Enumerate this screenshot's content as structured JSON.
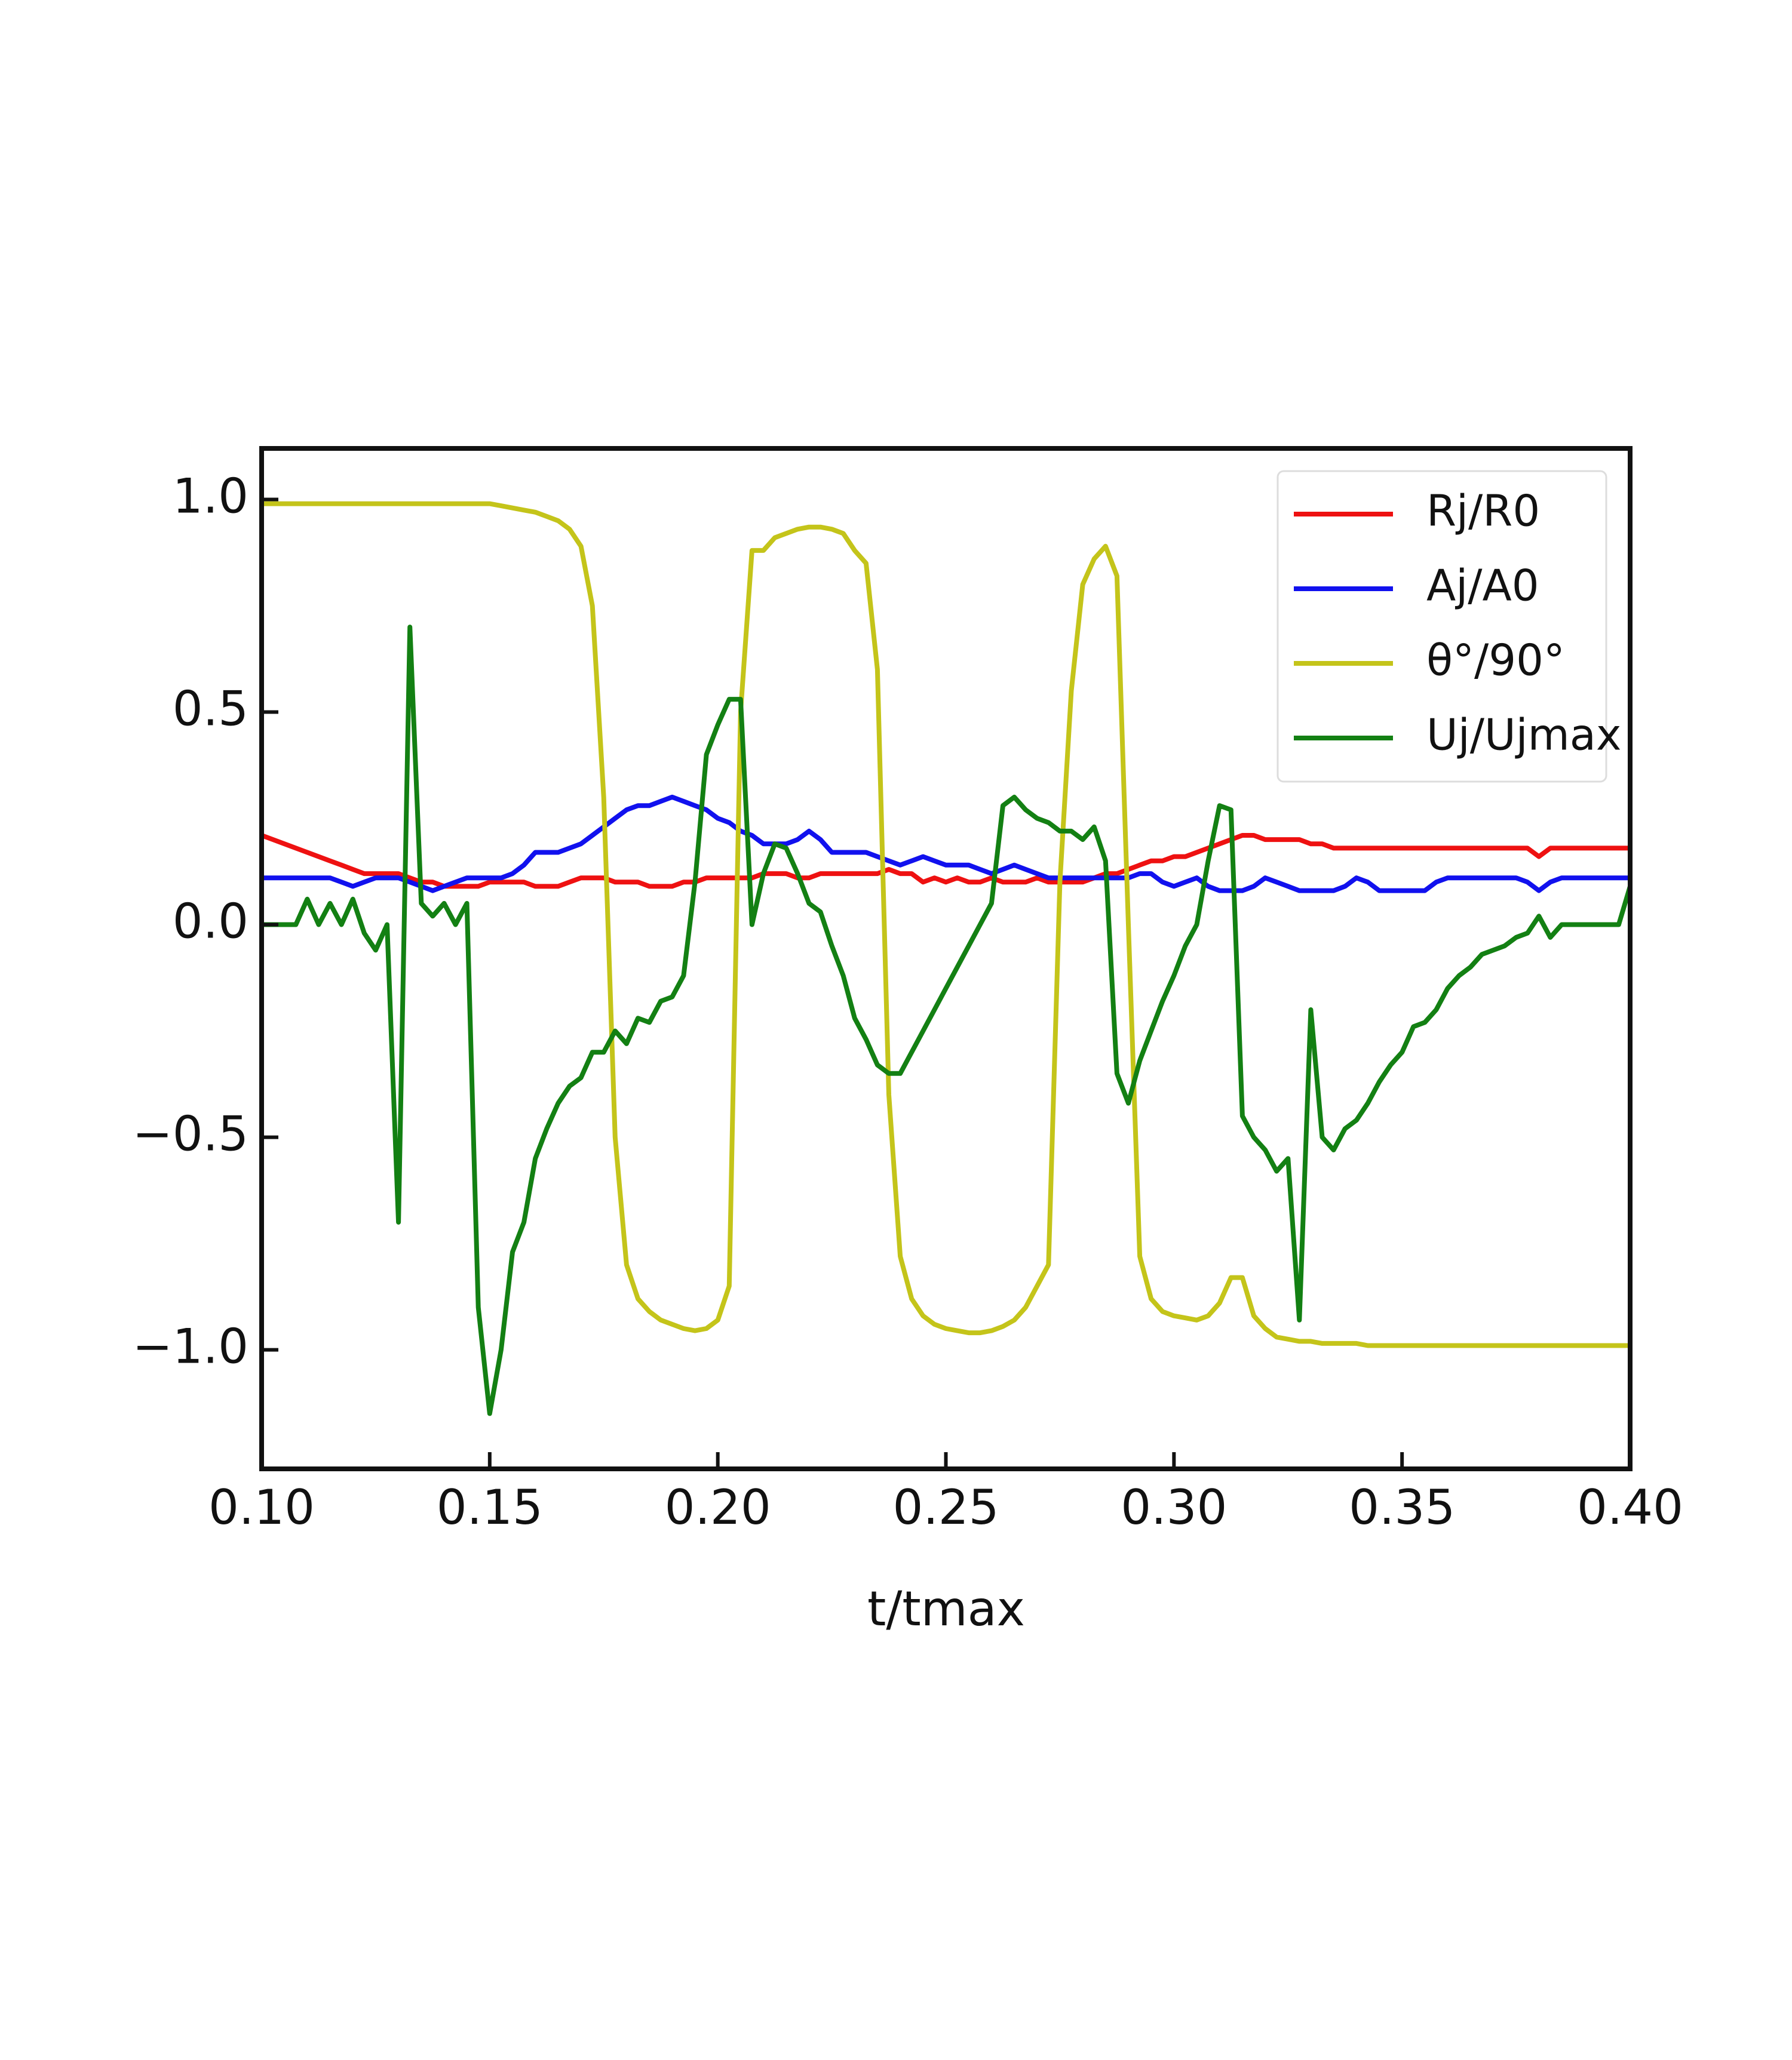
{
  "chart_data": {
    "type": "line",
    "xlabel": "t/tmax",
    "x": [
      0.1,
      0.1025,
      0.105,
      0.1075,
      0.11,
      0.1125,
      0.115,
      0.1175,
      0.12,
      0.1225,
      0.125,
      0.1275,
      0.13,
      0.1325,
      0.135,
      0.1375,
      0.14,
      0.1425,
      0.145,
      0.1475,
      0.15,
      0.1525,
      0.155,
      0.1575,
      0.16,
      0.1625,
      0.165,
      0.1675,
      0.17,
      0.1725,
      0.175,
      0.1775,
      0.18,
      0.1825,
      0.185,
      0.1875,
      0.19,
      0.1925,
      0.195,
      0.1975,
      0.2,
      0.2025,
      0.205,
      0.2075,
      0.21,
      0.2125,
      0.215,
      0.2175,
      0.22,
      0.2225,
      0.225,
      0.2275,
      0.23,
      0.2325,
      0.235,
      0.2375,
      0.24,
      0.2425,
      0.245,
      0.2475,
      0.25,
      0.2525,
      0.255,
      0.2575,
      0.26,
      0.2625,
      0.265,
      0.2675,
      0.27,
      0.2725,
      0.275,
      0.2775,
      0.28,
      0.2825,
      0.285,
      0.2875,
      0.29,
      0.2925,
      0.295,
      0.2975,
      0.3,
      0.3025,
      0.305,
      0.3075,
      0.31,
      0.3125,
      0.315,
      0.3175,
      0.32,
      0.3225,
      0.325,
      0.3275,
      0.33,
      0.3325,
      0.335,
      0.3375,
      0.34,
      0.3425,
      0.345,
      0.3475,
      0.35,
      0.3525,
      0.355,
      0.3575,
      0.36,
      0.3625,
      0.365,
      0.3675,
      0.37,
      0.3725,
      0.375,
      0.3775,
      0.38,
      0.3825,
      0.385,
      0.3875,
      0.39,
      0.3925,
      0.395,
      0.3975,
      0.4
    ],
    "series": [
      {
        "name": "Rj/R0",
        "color": "#ee1111",
        "values": [
          0.21,
          0.2,
          0.19,
          0.18,
          0.17,
          0.16,
          0.15,
          0.14,
          0.13,
          0.12,
          0.12,
          0.12,
          0.12,
          0.11,
          0.1,
          0.1,
          0.09,
          0.09,
          0.09,
          0.09,
          0.1,
          0.1,
          0.1,
          0.1,
          0.09,
          0.09,
          0.09,
          0.1,
          0.11,
          0.11,
          0.11,
          0.1,
          0.1,
          0.1,
          0.09,
          0.09,
          0.09,
          0.1,
          0.1,
          0.11,
          0.11,
          0.11,
          0.11,
          0.11,
          0.12,
          0.12,
          0.12,
          0.11,
          0.11,
          0.12,
          0.12,
          0.12,
          0.12,
          0.12,
          0.12,
          0.13,
          0.12,
          0.12,
          0.1,
          0.11,
          0.1,
          0.11,
          0.1,
          0.1,
          0.11,
          0.1,
          0.1,
          0.1,
          0.11,
          0.1,
          0.1,
          0.1,
          0.1,
          0.11,
          0.12,
          0.12,
          0.13,
          0.14,
          0.15,
          0.15,
          0.16,
          0.16,
          0.17,
          0.18,
          0.19,
          0.2,
          0.21,
          0.21,
          0.2,
          0.2,
          0.2,
          0.2,
          0.19,
          0.19,
          0.18,
          0.18,
          0.18,
          0.18,
          0.18,
          0.18,
          0.18,
          0.18,
          0.18,
          0.18,
          0.18,
          0.18,
          0.18,
          0.18,
          0.18,
          0.18,
          0.18,
          0.18,
          0.16,
          0.18,
          0.18,
          0.18,
          0.18,
          0.18,
          0.18,
          0.18,
          0.18
        ]
      },
      {
        "name": "Aj/A0",
        "color": "#1111ee",
        "values": [
          0.11,
          0.11,
          0.11,
          0.11,
          0.11,
          0.11,
          0.11,
          0.1,
          0.09,
          0.1,
          0.11,
          0.11,
          0.11,
          0.1,
          0.09,
          0.08,
          0.09,
          0.1,
          0.11,
          0.11,
          0.11,
          0.11,
          0.12,
          0.14,
          0.17,
          0.17,
          0.17,
          0.18,
          0.19,
          0.21,
          0.23,
          0.25,
          0.27,
          0.28,
          0.28,
          0.29,
          0.3,
          0.29,
          0.28,
          0.27,
          0.25,
          0.24,
          0.22,
          0.21,
          0.19,
          0.19,
          0.19,
          0.2,
          0.22,
          0.2,
          0.17,
          0.17,
          0.17,
          0.17,
          0.16,
          0.15,
          0.14,
          0.15,
          0.16,
          0.15,
          0.14,
          0.14,
          0.14,
          0.13,
          0.12,
          0.13,
          0.14,
          0.13,
          0.12,
          0.11,
          0.11,
          0.11,
          0.11,
          0.11,
          0.11,
          0.11,
          0.11,
          0.12,
          0.12,
          0.1,
          0.09,
          0.1,
          0.11,
          0.09,
          0.08,
          0.08,
          0.08,
          0.09,
          0.11,
          0.1,
          0.09,
          0.08,
          0.08,
          0.08,
          0.08,
          0.09,
          0.11,
          0.1,
          0.08,
          0.08,
          0.08,
          0.08,
          0.08,
          0.1,
          0.11,
          0.11,
          0.11,
          0.11,
          0.11,
          0.11,
          0.11,
          0.1,
          0.08,
          0.1,
          0.11,
          0.11,
          0.11,
          0.11,
          0.11,
          0.11,
          0.11
        ]
      },
      {
        "name": "θ°/90°",
        "color": "#c4c41a",
        "values": [
          0.99,
          0.99,
          0.99,
          0.99,
          0.99,
          0.99,
          0.99,
          0.99,
          0.99,
          0.99,
          0.99,
          0.99,
          0.99,
          0.99,
          0.99,
          0.99,
          0.99,
          0.99,
          0.99,
          0.99,
          0.99,
          0.985,
          0.98,
          0.975,
          0.97,
          0.96,
          0.95,
          0.93,
          0.89,
          0.75,
          0.3,
          -0.5,
          -0.8,
          -0.88,
          -0.91,
          -0.93,
          -0.94,
          -0.95,
          -0.955,
          -0.95,
          -0.93,
          -0.85,
          0.5,
          0.88,
          0.88,
          0.91,
          0.92,
          0.93,
          0.935,
          0.935,
          0.93,
          0.92,
          0.88,
          0.85,
          0.6,
          -0.4,
          -0.78,
          -0.88,
          -0.92,
          -0.94,
          -0.95,
          -0.955,
          -0.96,
          -0.96,
          -0.955,
          -0.945,
          -0.93,
          -0.9,
          -0.85,
          -0.8,
          0.1,
          0.55,
          0.8,
          0.86,
          0.89,
          0.82,
          0.0,
          -0.78,
          -0.88,
          -0.91,
          -0.92,
          -0.925,
          -0.93,
          -0.92,
          -0.89,
          -0.83,
          -0.83,
          -0.92,
          -0.95,
          -0.97,
          -0.975,
          -0.98,
          -0.98,
          -0.985,
          -0.985,
          -0.985,
          -0.985,
          -0.99,
          -0.99,
          -0.99,
          -0.99,
          -0.99,
          -0.99,
          -0.99,
          -0.99,
          -0.99,
          -0.99,
          -0.99,
          -0.99,
          -0.99,
          -0.99,
          -0.99,
          -0.99,
          -0.99,
          -0.99,
          -0.99,
          -0.99,
          -0.99,
          -0.99,
          -0.99,
          -0.99
        ]
      },
      {
        "name": "Uj/Ujmax",
        "color": "#138013",
        "values": [
          0,
          0,
          0,
          0,
          0.06,
          0,
          0.05,
          0,
          0.06,
          -0.02,
          -0.06,
          0,
          -0.7,
          0.7,
          0.05,
          0.02,
          0.05,
          0,
          0.05,
          -0.9,
          -1.15,
          -1.0,
          -0.77,
          -0.7,
          -0.55,
          -0.48,
          -0.42,
          -0.38,
          -0.36,
          -0.3,
          -0.3,
          -0.25,
          -0.28,
          -0.22,
          -0.23,
          -0.18,
          -0.17,
          -0.12,
          0.1,
          0.4,
          0.47,
          0.53,
          0.53,
          0.0,
          0.12,
          0.19,
          0.18,
          0.12,
          0.05,
          0.03,
          -0.05,
          -0.12,
          -0.22,
          -0.27,
          -0.33,
          -0.35,
          -0.35,
          -0.3,
          -0.25,
          -0.2,
          -0.15,
          -0.1,
          -0.05,
          0,
          0.05,
          0.28,
          0.3,
          0.27,
          0.25,
          0.24,
          0.22,
          0.22,
          0.2,
          0.23,
          0.15,
          -0.35,
          -0.42,
          -0.32,
          -0.25,
          -0.18,
          -0.12,
          -0.05,
          0,
          0.15,
          0.28,
          0.27,
          -0.45,
          -0.5,
          -0.53,
          -0.58,
          -0.55,
          -0.93,
          -0.2,
          -0.5,
          -0.53,
          -0.48,
          -0.46,
          -0.42,
          -0.37,
          -0.33,
          -0.3,
          -0.24,
          -0.23,
          -0.2,
          -0.15,
          -0.12,
          -0.1,
          -0.07,
          -0.06,
          -0.05,
          -0.03,
          -0.02,
          0.02,
          -0.03,
          0,
          0,
          0,
          0,
          0,
          0,
          0.09
        ]
      }
    ],
    "xlim": [
      0.1,
      0.4
    ],
    "xticks": [
      {
        "value": 0.1,
        "label": "0.10"
      },
      0.15,
      {
        "value": 0.2,
        "label": "0.20"
      },
      0.25,
      {
        "value": 0.3,
        "label": "0.30"
      },
      0.35,
      {
        "value": 0.4,
        "label": "0.40"
      }
    ],
    "ylim": [
      -1.28,
      1.12
    ],
    "yticks": [
      {
        "value": -1.0,
        "label": "−1.0"
      },
      {
        "value": -0.5,
        "label": "−0.5"
      },
      {
        "value": 0.0,
        "label": "0.0"
      },
      0.5,
      {
        "value": 1.0,
        "label": "1.0"
      }
    ],
    "legend": "upper right"
  }
}
